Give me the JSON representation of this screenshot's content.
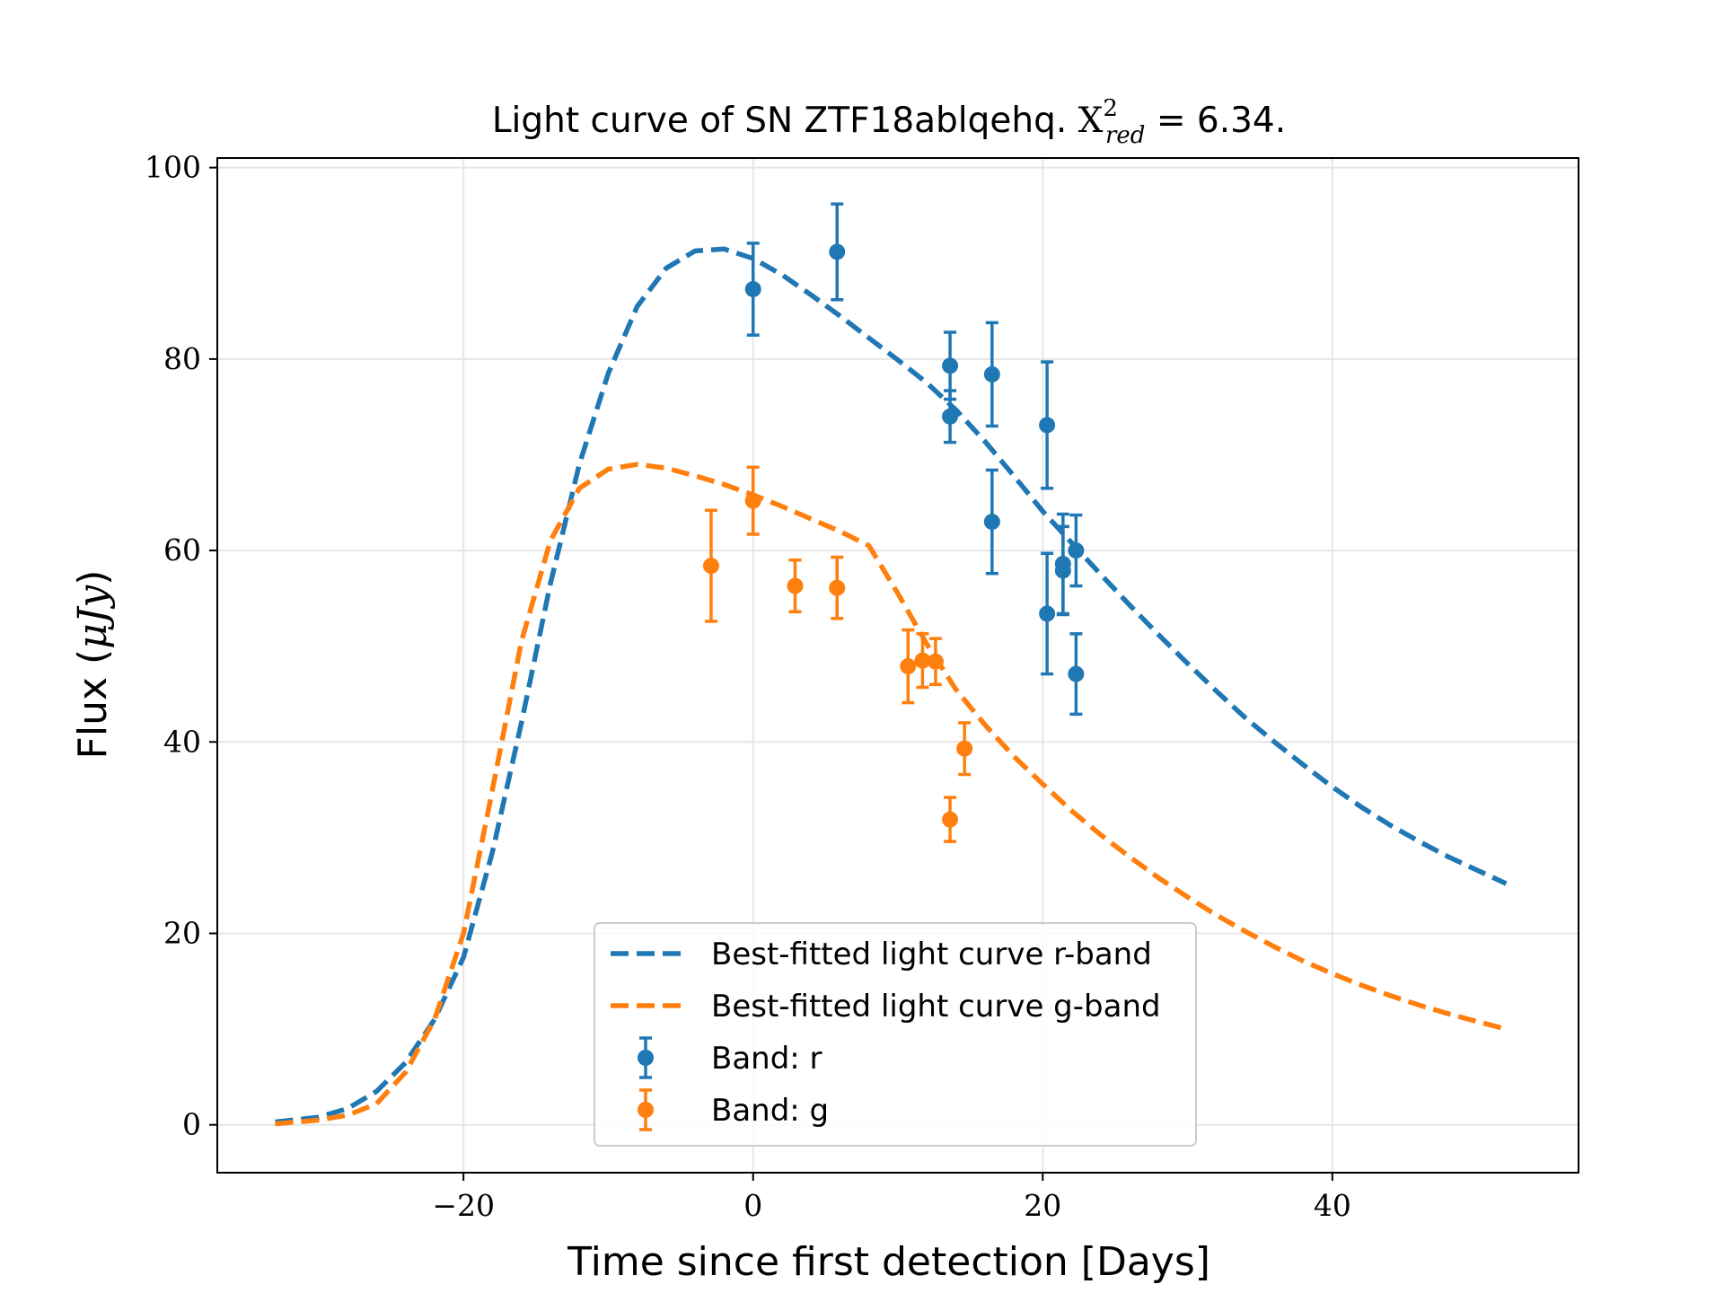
{
  "chart_data": {
    "type": "scatter",
    "title_main": "Light curve of SN ZTF18ablqehq.",
    "title_chi": "X",
    "title_chi_sup": "2",
    "title_chi_sub": "red",
    "title_value": " = 6.34.",
    "xlabel": "Time since first detection [Days]",
    "ylabel_main": "Flux (",
    "ylabel_unit": "μJy",
    "ylabel_close": ")",
    "xlim": [
      -37,
      57
    ],
    "ylim": [
      -5,
      101
    ],
    "xticks": [
      -20,
      0,
      20,
      40
    ],
    "xtick_labels": [
      "−20",
      "0",
      "20",
      "40"
    ],
    "yticks": [
      0,
      20,
      40,
      60,
      80,
      100
    ],
    "ytick_labels": [
      "0",
      "20",
      "40",
      "60",
      "80",
      "100"
    ],
    "grid": true,
    "legend_position": "lower-center",
    "colors": {
      "r": "#1f77b4",
      "g": "#ff7f0e"
    },
    "series": [
      {
        "name": "Best-fitted light curve r-band",
        "kind": "fit",
        "band": "r",
        "x": [
          -33,
          -30,
          -28,
          -26,
          -24,
          -22,
          -20,
          -18,
          -16,
          -14,
          -12,
          -10,
          -8,
          -6,
          -4,
          -2,
          0,
          2,
          4,
          6,
          8,
          10,
          12,
          14,
          16,
          18,
          20,
          22,
          24,
          26,
          28,
          30,
          32,
          34,
          36,
          38,
          40,
          42,
          44,
          46,
          48,
          50,
          52
        ],
        "y": [
          0.3,
          0.8,
          1.7,
          3.5,
          6.5,
          11.0,
          17.5,
          28.5,
          42.0,
          56.5,
          69.0,
          78.5,
          85.5,
          89.5,
          91.3,
          91.5,
          90.5,
          88.8,
          86.7,
          84.5,
          82.2,
          79.9,
          77.5,
          74.7,
          71.4,
          67.8,
          64.1,
          60.8,
          57.5,
          54.3,
          51.2,
          48.2,
          45.3,
          42.5,
          40.0,
          37.6,
          35.3,
          33.2,
          31.3,
          29.6,
          28.0,
          26.6,
          25.2
        ]
      },
      {
        "name": "Best-fitted light curve g-band",
        "kind": "fit",
        "band": "g",
        "x": [
          -33,
          -30,
          -28,
          -26,
          -24,
          -22,
          -20,
          -18,
          -16,
          -14,
          -12,
          -10,
          -8,
          -6,
          -4,
          -2,
          0,
          2,
          4,
          6,
          8,
          10,
          12,
          14,
          16,
          18,
          20,
          22,
          24,
          26,
          28,
          30,
          32,
          34,
          36,
          38,
          40,
          42,
          44,
          46,
          48,
          50,
          52
        ],
        "y": [
          0.1,
          0.5,
          1.0,
          2.2,
          5.5,
          11.0,
          20.0,
          35.0,
          50.5,
          61.0,
          66.5,
          68.5,
          69.0,
          68.6,
          67.8,
          66.9,
          65.8,
          64.6,
          63.3,
          62.0,
          60.5,
          55.5,
          50.2,
          45.5,
          41.8,
          38.5,
          35.6,
          32.8,
          30.3,
          28.0,
          25.8,
          23.8,
          21.9,
          20.2,
          18.6,
          17.1,
          15.8,
          14.6,
          13.5,
          12.5,
          11.6,
          10.8,
          10.0
        ]
      },
      {
        "name": "Band: r",
        "kind": "points",
        "band": "r",
        "x": [
          0.0,
          5.8,
          13.6,
          13.6,
          16.5,
          16.5,
          20.3,
          20.3,
          21.4,
          21.4,
          22.3,
          22.3
        ],
        "y": [
          87.3,
          91.2,
          79.3,
          74.0,
          78.4,
          63.0,
          73.1,
          53.4,
          58.6,
          57.9,
          60.0,
          47.1
        ],
        "err": [
          4.8,
          5.0,
          3.5,
          2.7,
          5.4,
          5.4,
          6.6,
          6.3,
          5.2,
          4.6,
          3.7,
          4.2
        ]
      },
      {
        "name": "Band: g",
        "kind": "points",
        "band": "g",
        "x": [
          -2.9,
          0.0,
          2.9,
          5.8,
          10.7,
          11.7,
          12.6,
          14.6,
          13.6
        ],
        "y": [
          58.4,
          65.2,
          56.3,
          56.1,
          47.9,
          48.5,
          48.4,
          39.3,
          31.9
        ],
        "err": [
          5.8,
          3.5,
          2.7,
          3.2,
          3.8,
          2.8,
          2.4,
          2.7,
          2.3
        ]
      }
    ]
  }
}
